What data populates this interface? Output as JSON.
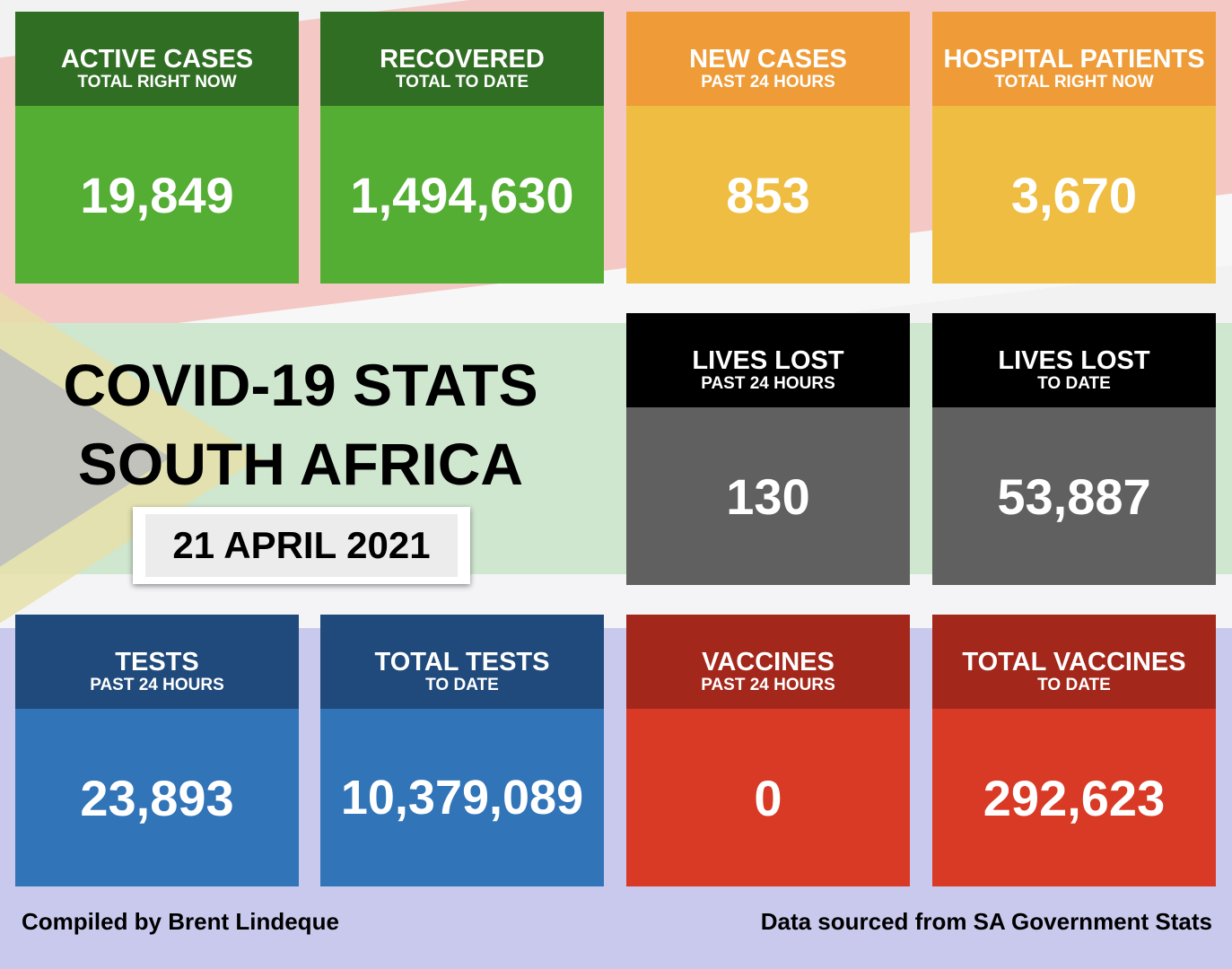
{
  "title_line1": "COVID-19 STATS",
  "title_line2": "SOUTH AFRICA",
  "date": "21 APRIL 2021",
  "cards": {
    "active_cases": {
      "label": "ACTIVE CASES",
      "sub": "TOTAL RIGHT NOW",
      "value": "19,849"
    },
    "recovered": {
      "label": "RECOVERED",
      "sub": "TOTAL TO DATE",
      "value": "1,494,630"
    },
    "new_cases": {
      "label": "NEW CASES",
      "sub": "PAST 24 HOURS",
      "value": "853"
    },
    "hospital_patients": {
      "label": "HOSPITAL PATIENTS",
      "sub": "TOTAL RIGHT NOW",
      "value": "3,670"
    },
    "lives_lost_24h": {
      "label": "LIVES LOST",
      "sub": "PAST 24 HOURS",
      "value": "130"
    },
    "lives_lost_total": {
      "label": "LIVES LOST",
      "sub": "TO DATE",
      "value": "53,887"
    },
    "tests_24h": {
      "label": "TESTS",
      "sub": "PAST 24 HOURS",
      "value": "23,893"
    },
    "total_tests": {
      "label": "TOTAL TESTS",
      "sub": "TO DATE",
      "value": "10,379,089"
    },
    "vaccines_24h": {
      "label": "VACCINES",
      "sub": "PAST 24 HOURS",
      "value": "0"
    },
    "total_vaccines": {
      "label": "TOTAL VACCINES",
      "sub": "TO DATE",
      "value": "292,623"
    }
  },
  "footer": {
    "left": "Compiled by Brent Lindeque",
    "right": "Data sourced from SA Government Stats"
  },
  "colors": {
    "green": "#53ae33",
    "orange": "#efbd41",
    "grey": "#606060",
    "blue": "#3174b8",
    "red": "#d93a26"
  }
}
